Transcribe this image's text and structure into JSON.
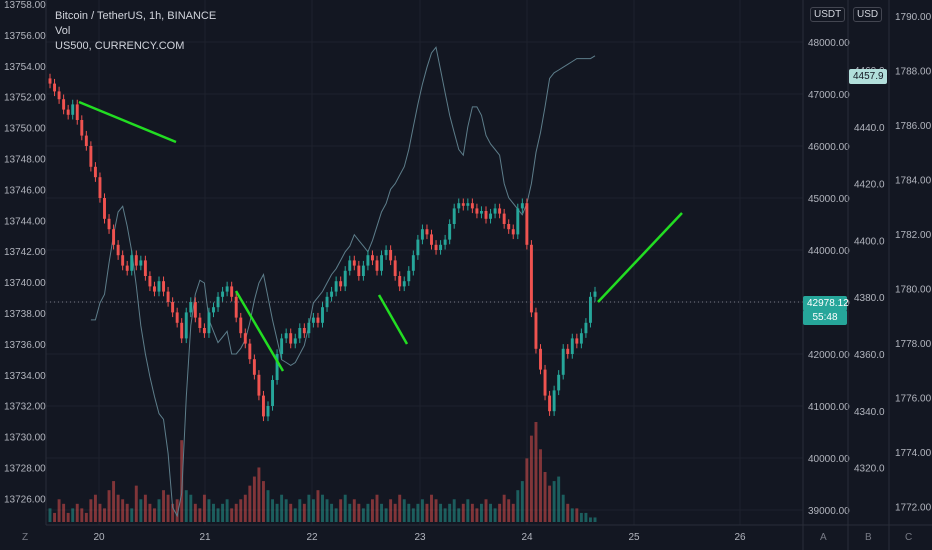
{
  "header": {
    "symbol": "Bitcoin / TetherUS, 1h, BINANCE",
    "indicator": "Vol",
    "compare": "US500, CURRENCY.COM"
  },
  "axis_buttons": {
    "usdt": "USDT",
    "usd": "USD"
  },
  "price_tags": {
    "btc_price": "42978.12",
    "countdown": "55:48",
    "us500_price": "4457.9"
  },
  "corner_labels": {
    "z": "Z",
    "a": "A",
    "b": "B",
    "c": "C"
  },
  "colors": {
    "bg": "#131722",
    "up": "#26a69a",
    "down": "#ef5350",
    "trend": "#22dd22",
    "compare": "#5d7d8a",
    "grid": "#1e222d"
  },
  "chart_data": {
    "type": "candlestick",
    "x_ticks": [
      "20",
      "21",
      "22",
      "23",
      "24",
      "25",
      "26"
    ],
    "axis_far_left": {
      "ticks": [
        "13758.00",
        "13756.00",
        "13754.00",
        "13752.00",
        "13750.00",
        "13748.00",
        "13746.00",
        "13744.00",
        "13742.00",
        "13740.00",
        "13738.00",
        "13736.00",
        "13734.00",
        "13732.00",
        "13730.00",
        "13728.00",
        "13726.00"
      ]
    },
    "axis_usdt": {
      "ticks": [
        "48000.00",
        "47000.00",
        "46000.00",
        "45000.00",
        "44000.00",
        "43000.00",
        "42000.00",
        "41000.00",
        "40000.00",
        "39000.00"
      ],
      "ylim": [
        38900,
        48300
      ]
    },
    "axis_usd": {
      "ticks": [
        "4460.0",
        "4440.0",
        "4420.0",
        "4400.0",
        "4380.0",
        "4360.0",
        "4340.0",
        "4320.0"
      ]
    },
    "axis_right": {
      "ticks": [
        "1790.00",
        "1788.00",
        "1786.00",
        "1784.00",
        "1782.00",
        "1780.00",
        "1778.00",
        "1776.00",
        "1774.00",
        "1772.00"
      ]
    },
    "btc_close": [
      47200,
      47050,
      46900,
      46700,
      46600,
      46800,
      46500,
      46200,
      46000,
      45600,
      45400,
      45000,
      44600,
      44400,
      44100,
      43900,
      43700,
      43600,
      43900,
      43700,
      43800,
      43500,
      43300,
      43200,
      43400,
      43200,
      43000,
      42800,
      42600,
      42300,
      42800,
      43000,
      42700,
      42500,
      42400,
      42800,
      42900,
      43100,
      43200,
      43300,
      43100,
      42700,
      42400,
      42200,
      41900,
      41600,
      41200,
      40800,
      41000,
      41500,
      42000,
      42300,
      42400,
      42200,
      42300,
      42500,
      42400,
      42600,
      42700,
      42600,
      42900,
      43100,
      43200,
      43400,
      43300,
      43600,
      43800,
      43700,
      43500,
      43700,
      43900,
      43800,
      43600,
      43900,
      44000,
      43800,
      43500,
      43300,
      43400,
      43600,
      43900,
      44200,
      44400,
      44300,
      44100,
      44000,
      44100,
      44200,
      44500,
      44800,
      44900,
      44850,
      44900,
      44800,
      44700,
      44750,
      44600,
      44700,
      44800,
      44700,
      44500,
      44400,
      44300,
      44800,
      44900,
      44100,
      42800,
      42100,
      41700,
      41200,
      40900,
      41300,
      41600,
      42100,
      42000,
      42300,
      42200,
      42400,
      42600,
      43100,
      43200
    ],
    "volume": [
      3,
      2,
      5,
      4,
      2,
      3,
      4,
      3,
      2,
      5,
      6,
      4,
      3,
      7,
      9,
      6,
      5,
      4,
      3,
      8,
      5,
      6,
      4,
      3,
      5,
      7,
      6,
      4,
      5,
      18,
      7,
      6,
      4,
      3,
      6,
      5,
      4,
      3,
      4,
      5,
      3,
      4,
      5,
      6,
      8,
      10,
      12,
      9,
      7,
      5,
      4,
      6,
      5,
      4,
      3,
      5,
      4,
      6,
      5,
      7,
      6,
      5,
      4,
      3,
      5,
      6,
      4,
      5,
      4,
      3,
      4,
      5,
      6,
      4,
      3,
      5,
      4,
      6,
      5,
      4,
      3,
      4,
      5,
      4,
      6,
      5,
      4,
      3,
      4,
      5,
      3,
      4,
      5,
      4,
      3,
      4,
      5,
      4,
      3,
      4,
      6,
      5,
      4,
      7,
      9,
      14,
      19,
      22,
      16,
      11,
      8,
      9,
      10,
      6,
      4,
      3,
      3,
      2,
      2,
      1,
      1
    ],
    "us500": [
      null,
      null,
      null,
      null,
      null,
      null,
      null,
      null,
      null,
      4372,
      4372,
      4378,
      4381,
      4392,
      4402,
      4410,
      4412,
      4405,
      4396,
      4384,
      4370,
      4360,
      4352,
      4345,
      4339,
      4337,
      4325,
      4306,
      4303,
      4311,
      4345,
      4370,
      4381,
      4386,
      4385,
      4372,
      4368,
      4364,
      4366,
      4368,
      4360,
      4360,
      4362,
      4365,
      4371,
      4379,
      4385,
      4388,
      4380,
      4372,
      4365,
      4358,
      4357,
      4356,
      4357,
      4360,
      4363,
      4370,
      4378,
      4380,
      4382,
      4385,
      4388,
      4390,
      4393,
      4396,
      4398,
      4402,
      4400,
      4398,
      4396,
      4400,
      4405,
      4410,
      4413,
      4418,
      4420,
      4423,
      4426,
      4432,
      4440,
      4448,
      4455,
      4461,
      4466,
      4468,
      4460,
      4452,
      4444,
      4438,
      4432,
      4430,
      4440,
      4447,
      4447,
      4444,
      4437,
      4434,
      4432,
      4430,
      4420,
      4415,
      4413,
      4411,
      4409,
      4413,
      4420,
      4431,
      4438,
      4447,
      4457,
      4459,
      4460,
      4461,
      4462,
      4463,
      4464,
      4464,
      4464,
      4464,
      4465
    ]
  }
}
